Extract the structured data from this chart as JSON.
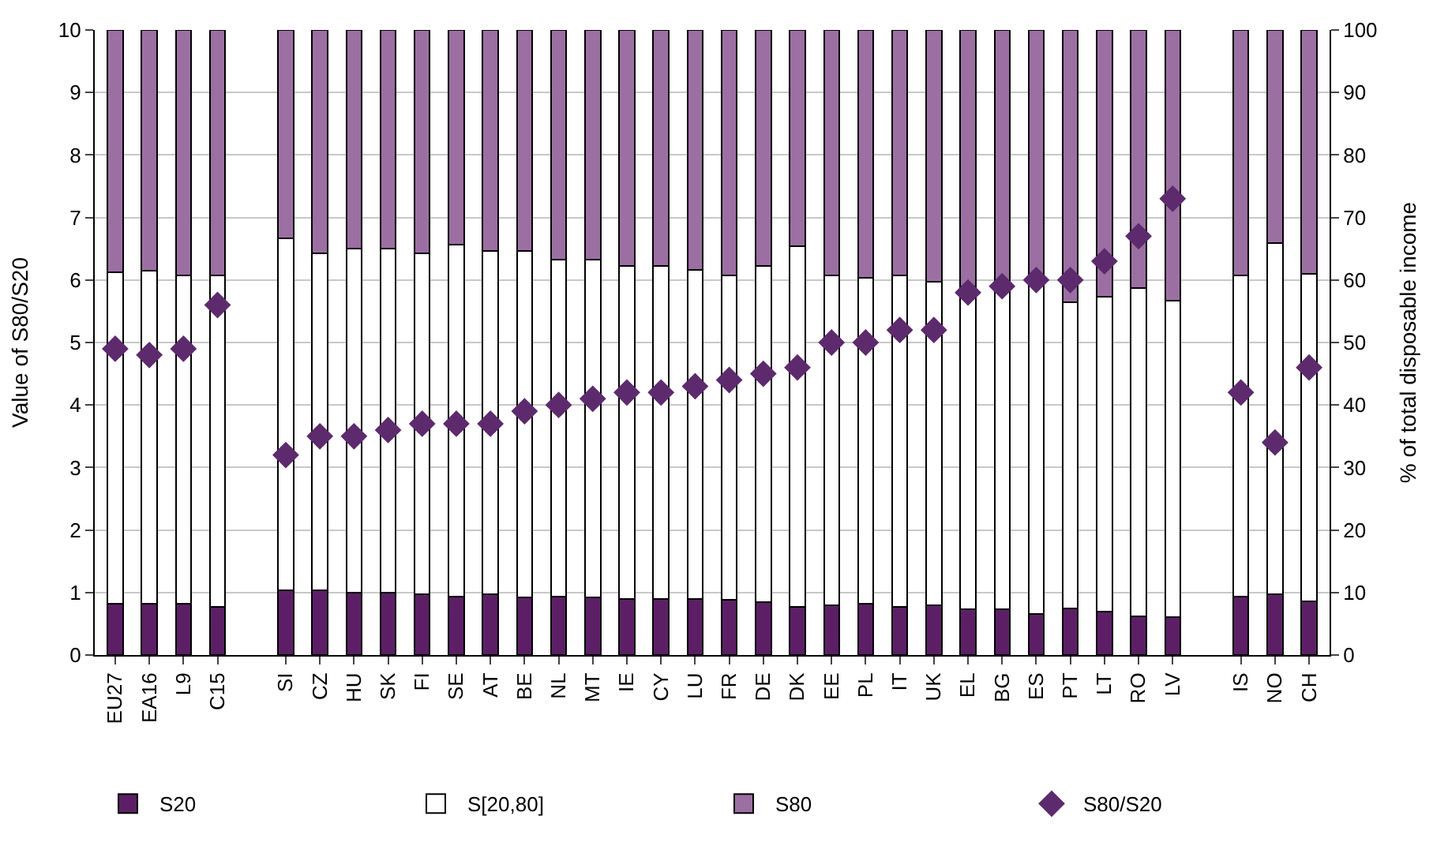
{
  "chart_data": {
    "type": "bar",
    "stacked": true,
    "xlabel": null,
    "categories": [
      "EU27",
      "EA16",
      "L9",
      "C15",
      null,
      "SI",
      "CZ",
      "HU",
      "SK",
      "FI",
      "SE",
      "AT",
      "BE",
      "NL",
      "MT",
      "IE",
      "CY",
      "LU",
      "FR",
      "DE",
      "DK",
      "EE",
      "PL",
      "IT",
      "UK",
      "EL",
      "BG",
      "ES",
      "PT",
      "LT",
      "RO",
      "LV",
      null,
      "IS",
      "NO",
      "CH"
    ],
    "series": [
      {
        "name": "S20",
        "color": "#5c1f66",
        "axis": "y2",
        "values": [
          8.2,
          8.2,
          8.2,
          7.7,
          null,
          10.3,
          10.3,
          10.0,
          10.0,
          9.7,
          9.4,
          9.7,
          9.2,
          9.4,
          9.2,
          9.0,
          9.0,
          9.0,
          8.9,
          8.5,
          7.7,
          8.0,
          8.2,
          7.7,
          8.0,
          7.3,
          7.3,
          6.6,
          7.5,
          6.9,
          6.2,
          6.0,
          null,
          9.4,
          9.7,
          8.6
        ]
      },
      {
        "name": "S[20,80]",
        "color": "#ffffff",
        "axis": "y2",
        "values": [
          53.1,
          53.3,
          52.5,
          53.0,
          null,
          56.4,
          54.0,
          55.0,
          55.0,
          54.6,
          56.2,
          55.0,
          55.5,
          53.9,
          54.1,
          53.3,
          53.3,
          52.6,
          51.8,
          53.7,
          57.7,
          52.7,
          52.2,
          53.0,
          51.7,
          51.7,
          51.7,
          53.4,
          49.0,
          50.4,
          52.5,
          50.7,
          null,
          51.3,
          56.2,
          52.4
        ]
      },
      {
        "name": "S80",
        "color": "#9c6fa3",
        "axis": "y2",
        "values": [
          38.7,
          38.5,
          39.3,
          39.3,
          null,
          33.3,
          35.7,
          35.0,
          35.0,
          35.7,
          34.4,
          35.3,
          35.3,
          36.7,
          36.7,
          37.7,
          37.7,
          38.4,
          39.3,
          37.8,
          34.6,
          39.3,
          39.6,
          39.3,
          40.3,
          41.0,
          41.0,
          40.0,
          43.5,
          42.7,
          41.3,
          43.3,
          null,
          39.3,
          34.1,
          39.0
        ]
      },
      {
        "name": "S80/S20",
        "type": "scatter",
        "color": "#5e2a6e",
        "marker": "diamond",
        "values": [
          4.9,
          4.8,
          4.9,
          5.6,
          null,
          3.2,
          3.5,
          3.5,
          3.6,
          3.7,
          3.7,
          3.7,
          3.9,
          4.0,
          4.1,
          4.2,
          4.2,
          4.3,
          4.4,
          4.5,
          4.6,
          5.0,
          5.0,
          5.2,
          5.2,
          5.8,
          5.9,
          6.0,
          6.0,
          6.3,
          6.7,
          7.3,
          null,
          4.2,
          3.4,
          4.6
        ]
      }
    ],
    "ylabel": "Value of S80/S20",
    "y2label": "% of total disposable income",
    "ylim": [
      0,
      10
    ],
    "yticks": [
      0,
      1,
      2,
      3,
      4,
      5,
      6,
      7,
      8,
      9,
      10
    ],
    "y2lim": [
      0,
      100
    ],
    "y2ticks": [
      0,
      10,
      20,
      30,
      40,
      50,
      60,
      70,
      80,
      90,
      100
    ],
    "grid": "y",
    "legend": "bottom"
  }
}
